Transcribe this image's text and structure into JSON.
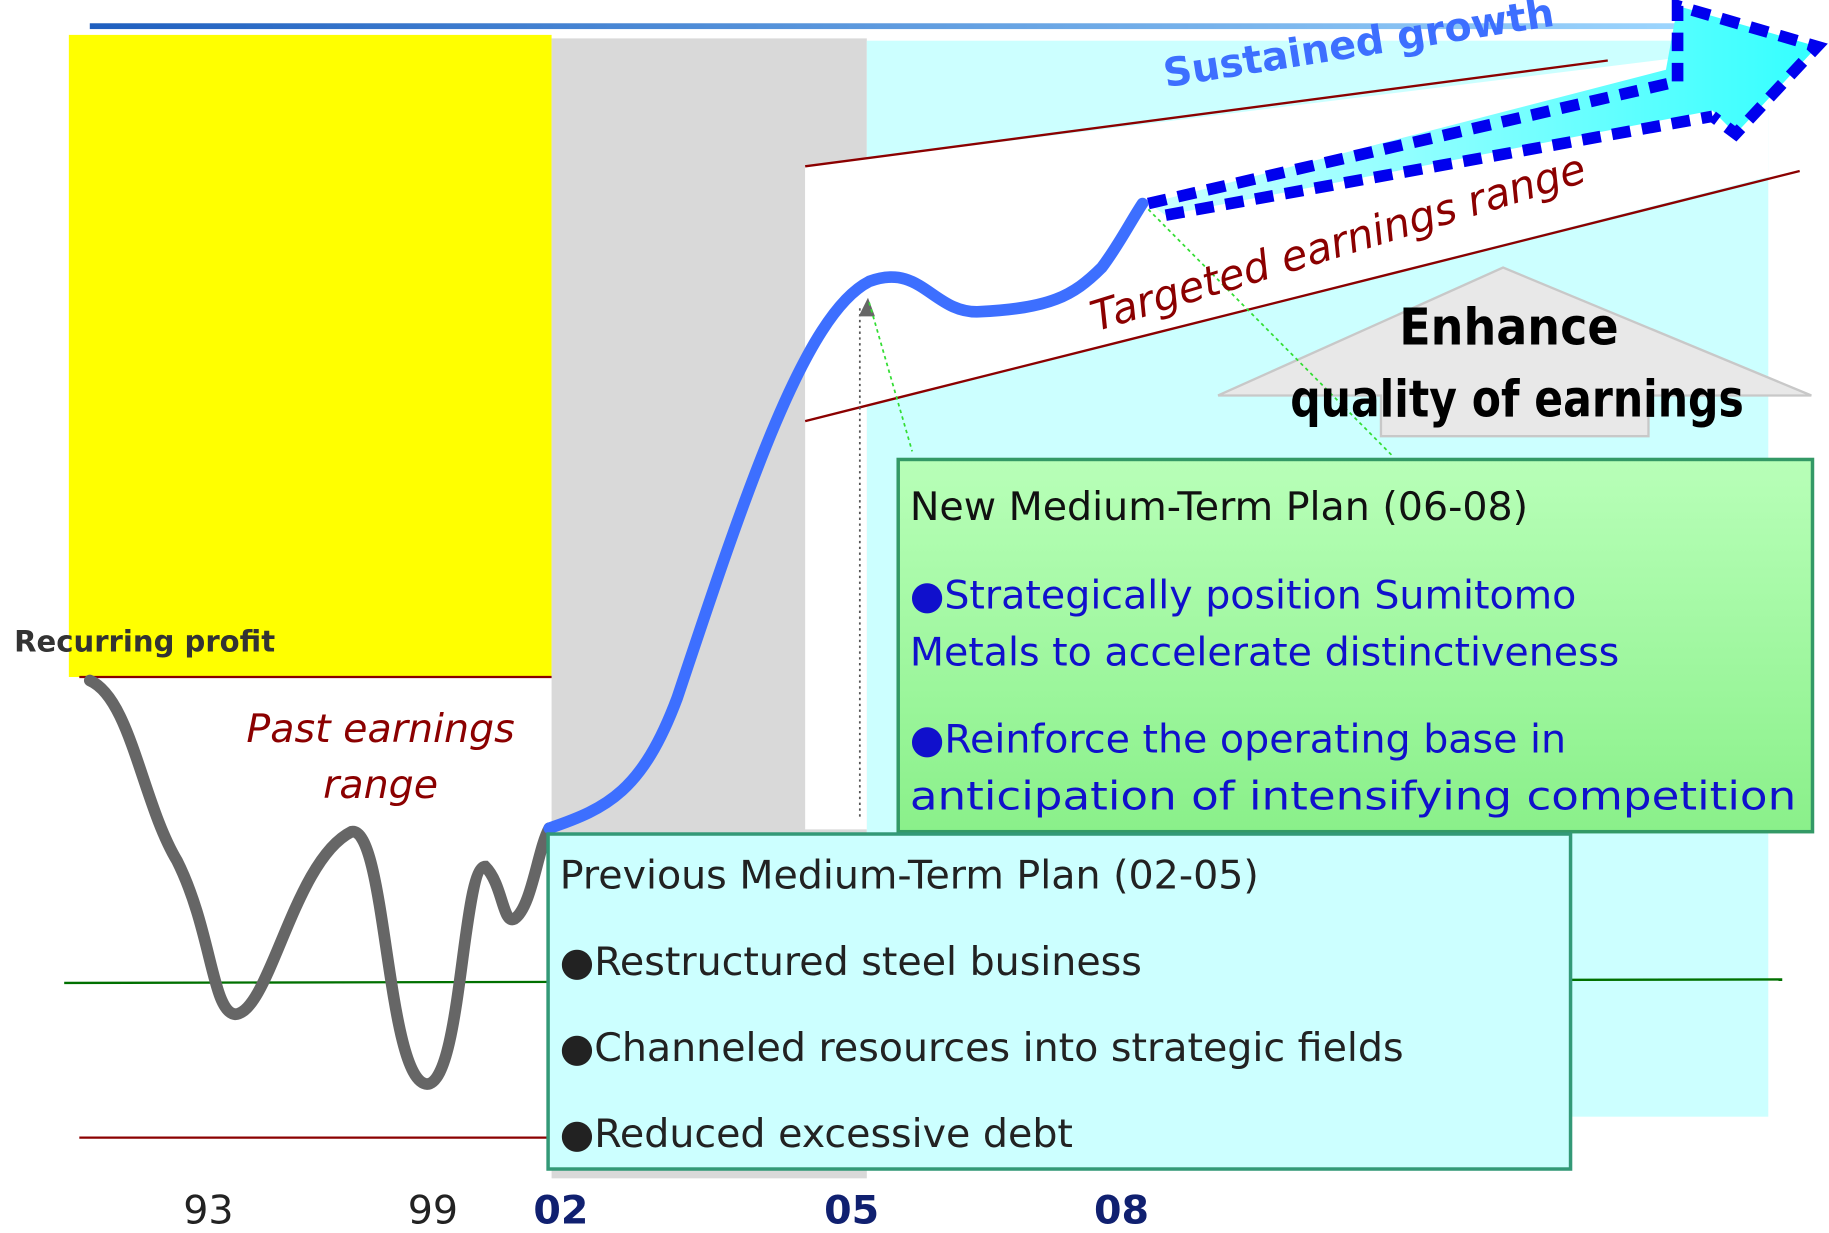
{
  "axis_label": "Recurring profit",
  "x_labels": [
    "93",
    "99",
    "02",
    "05",
    "08"
  ],
  "past_range": [
    "Past earnings",
    "range"
  ],
  "targeted_range": "Targeted earnings  range",
  "sustained": "Sustained growth",
  "enhance": [
    "Enhance",
    "quality of earnings"
  ],
  "new_plan": {
    "title": "New Medium-Term Plan (06-08)",
    "bullets": [
      [
        "●Strategically position Sumitomo",
        "Metals to accelerate distinctiveness"
      ],
      [
        "●Reinforce the operating base in",
        "anticipation of intensifying competition"
      ]
    ]
  },
  "previous_plan": {
    "title": "Previous Medium-Term Plan (02-05)",
    "bullets": [
      "●Restructured steel business",
      "●Channeled resources into strategic fields",
      "●Reduced excessive debt"
    ]
  }
}
